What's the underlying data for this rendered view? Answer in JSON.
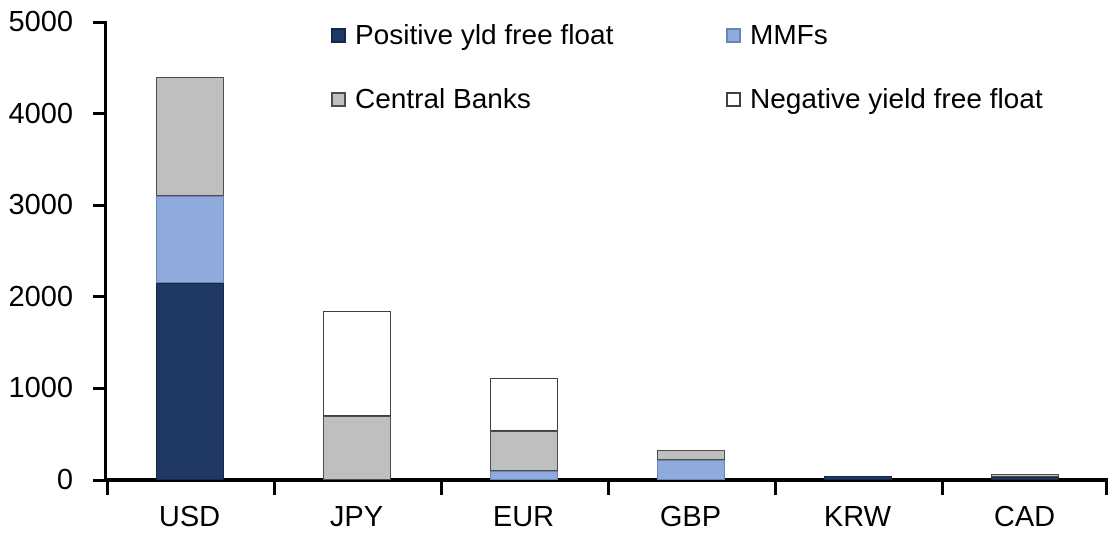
{
  "chart_data": {
    "type": "bar",
    "stacked": true,
    "title": "",
    "xlabel": "",
    "ylabel": "",
    "grid": false,
    "legend_position": "top",
    "ylim": [
      0,
      5000
    ],
    "yticks": [
      0,
      1000,
      2000,
      3000,
      4000,
      5000
    ],
    "categories": [
      "USD",
      "JPY",
      "EUR",
      "GBP",
      "KRW",
      "CAD"
    ],
    "series": [
      {
        "name": "Positive yld free float",
        "color": "#1F3864",
        "border_color": "#152847",
        "values": [
          2150,
          0,
          0,
          0,
          45,
          35
        ]
      },
      {
        "name": "MMFs",
        "color": "#8FAADC",
        "border_color": "#6b84b4",
        "values": [
          950,
          0,
          100,
          215,
          0,
          0
        ]
      },
      {
        "name": "Central Banks",
        "color": "#BFBFBF",
        "border_color": "#4d4d4d",
        "values": [
          1300,
          700,
          440,
          115,
          0,
          35
        ]
      },
      {
        "name": "Negative yield free float",
        "color": "#FFFFFF",
        "border_color": "#404040",
        "values": [
          0,
          1150,
          570,
          0,
          0,
          0
        ]
      }
    ],
    "totals": {
      "USD": 4400,
      "JPY": 1850,
      "EUR": 1110,
      "GBP": 330,
      "KRW": 45,
      "CAD": 70
    }
  },
  "colors": {
    "axis": "#000000",
    "text": "#000000",
    "background": "#ffffff"
  }
}
